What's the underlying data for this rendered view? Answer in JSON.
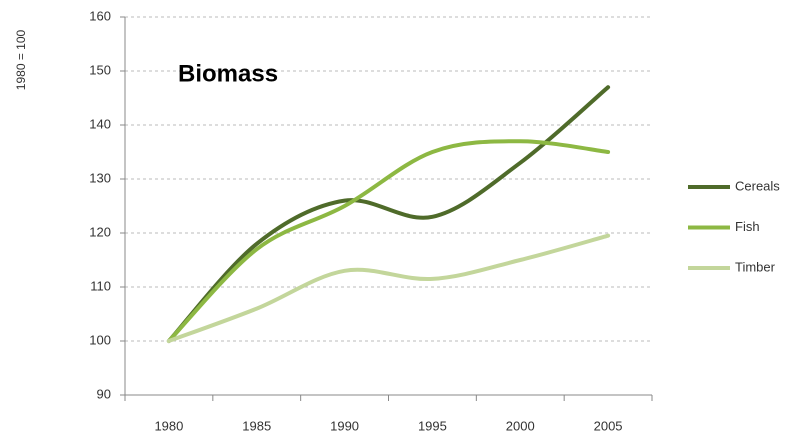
{
  "chart_data": {
    "type": "line",
    "title": "Biomass",
    "y_label": "1980 = 100",
    "categories": [
      "1980",
      "1985",
      "1990",
      "1995",
      "2000",
      "2005"
    ],
    "series": [
      {
        "name": "Cereals",
        "color": "#4f6b2a",
        "values": [
          100,
          118,
          126,
          123,
          133,
          147
        ]
      },
      {
        "name": "Fish",
        "color": "#8db843",
        "values": [
          100,
          117,
          125,
          135,
          137,
          135
        ]
      },
      {
        "name": "Timber",
        "color": "#c3d69b",
        "values": [
          100,
          106,
          113,
          111.5,
          115,
          119.5
        ]
      }
    ],
    "ylim": [
      90,
      160
    ],
    "yticks": [
      90,
      100,
      110,
      120,
      130,
      140,
      150,
      160
    ],
    "grid": true,
    "legend": "right"
  }
}
